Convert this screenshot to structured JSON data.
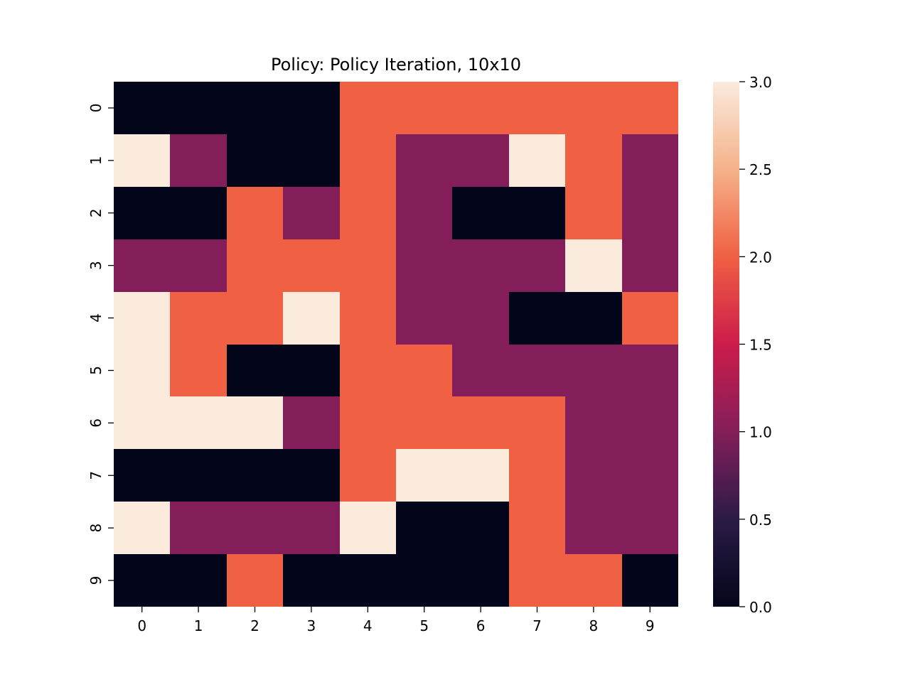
{
  "chart_data": {
    "type": "heatmap",
    "title": "Policy: Policy Iteration, 10x10",
    "xlabel": "",
    "ylabel": "",
    "x_ticks": [
      "0",
      "1",
      "2",
      "3",
      "4",
      "5",
      "6",
      "7",
      "8",
      "9"
    ],
    "y_ticks": [
      "0",
      "1",
      "2",
      "3",
      "4",
      "5",
      "6",
      "7",
      "8",
      "9"
    ],
    "values": [
      [
        0,
        0,
        0,
        0,
        2,
        2,
        2,
        2,
        2,
        2
      ],
      [
        3,
        1,
        0,
        0,
        2,
        1,
        1,
        3,
        2,
        1
      ],
      [
        0,
        0,
        2,
        1,
        2,
        1,
        0,
        0,
        2,
        1
      ],
      [
        1,
        1,
        2,
        2,
        2,
        1,
        1,
        1,
        3,
        1
      ],
      [
        3,
        2,
        2,
        3,
        2,
        1,
        1,
        0,
        0,
        2
      ],
      [
        3,
        2,
        0,
        0,
        2,
        2,
        1,
        1,
        1,
        1
      ],
      [
        3,
        3,
        3,
        1,
        2,
        2,
        2,
        2,
        1,
        1
      ],
      [
        0,
        0,
        0,
        0,
        2,
        3,
        3,
        2,
        1,
        1
      ],
      [
        3,
        1,
        1,
        1,
        3,
        0,
        0,
        2,
        1,
        1
      ],
      [
        0,
        0,
        2,
        0,
        0,
        0,
        0,
        2,
        2,
        0
      ]
    ],
    "vmin": 0,
    "vmax": 3,
    "colorbar": {
      "ticks": [
        0,
        0.5,
        1,
        1.5,
        2,
        2.5,
        3
      ],
      "tick_labels": [
        "0.0",
        "0.5",
        "1.0",
        "1.5",
        "2.0",
        "2.5",
        "3.0"
      ]
    },
    "colormap": [
      "#03051a",
      "#2b1b46",
      "#841e5a",
      "#cc1c4a",
      "#f06043",
      "#f5b28a",
      "#faebdd"
    ],
    "value_colors": {
      "0": "#03051a",
      "1": "#841e5a",
      "2": "#f06043",
      "3": "#faebdd"
    },
    "grid": false,
    "legend": "colorbar-right"
  }
}
